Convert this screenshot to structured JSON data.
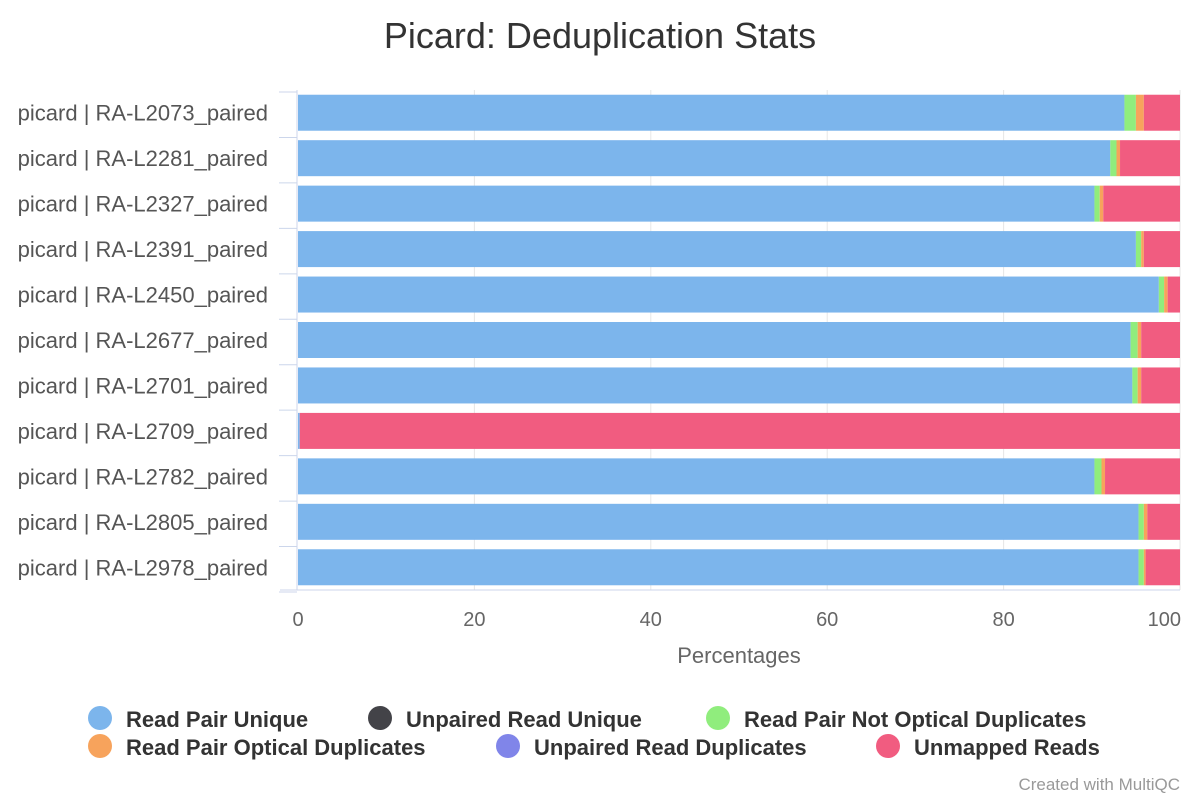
{
  "credit": "Created with MultiQC",
  "chart_data": {
    "type": "bar",
    "orientation": "horizontal",
    "stacked": true,
    "title": "Picard: Deduplication Stats",
    "xlabel": "Percentages",
    "ylabel": "",
    "xlim": [
      0,
      100
    ],
    "x_ticks": [
      0,
      20,
      40,
      60,
      80,
      100
    ],
    "grid": true,
    "legend_position": "bottom",
    "categories": [
      "picard | RA-L2073_paired",
      "picard | RA-L2281_paired",
      "picard | RA-L2327_paired",
      "picard | RA-L2391_paired",
      "picard | RA-L2450_paired",
      "picard | RA-L2677_paired",
      "picard | RA-L2701_paired",
      "picard | RA-L2709_paired",
      "picard | RA-L2782_paired",
      "picard | RA-L2805_paired",
      "picard | RA-L2978_paired"
    ],
    "series": [
      {
        "name": "Read Pair Unique",
        "color": "#7cb5ec",
        "values": [
          93.7,
          92.1,
          90.3,
          95.0,
          97.6,
          94.4,
          94.6,
          0.2,
          90.3,
          95.3,
          95.3
        ]
      },
      {
        "name": "Unpaired Read Unique",
        "color": "#434348",
        "values": [
          0.0,
          0.0,
          0.0,
          0.0,
          0.0,
          0.0,
          0.0,
          0.0,
          0.0,
          0.0,
          0.0
        ]
      },
      {
        "name": "Read Pair Not Optical Duplicates",
        "color": "#90ed7d",
        "values": [
          1.3,
          0.7,
          0.6,
          0.6,
          0.6,
          0.8,
          0.6,
          0.0,
          0.8,
          0.6,
          0.6
        ]
      },
      {
        "name": "Read Pair Optical Duplicates",
        "color": "#f7a35c",
        "values": [
          0.9,
          0.4,
          0.4,
          0.3,
          0.4,
          0.4,
          0.4,
          0.0,
          0.4,
          0.4,
          0.2
        ]
      },
      {
        "name": "Unpaired Read Duplicates",
        "color": "#8085e9",
        "values": [
          0.0,
          0.0,
          0.0,
          0.0,
          0.0,
          0.0,
          0.0,
          0.0,
          0.0,
          0.0,
          0.0
        ]
      },
      {
        "name": "Unmapped Reads",
        "color": "#f15c80",
        "values": [
          4.1,
          6.8,
          8.7,
          4.1,
          1.4,
          4.4,
          4.4,
          99.8,
          8.5,
          3.7,
          3.9
        ]
      }
    ]
  }
}
